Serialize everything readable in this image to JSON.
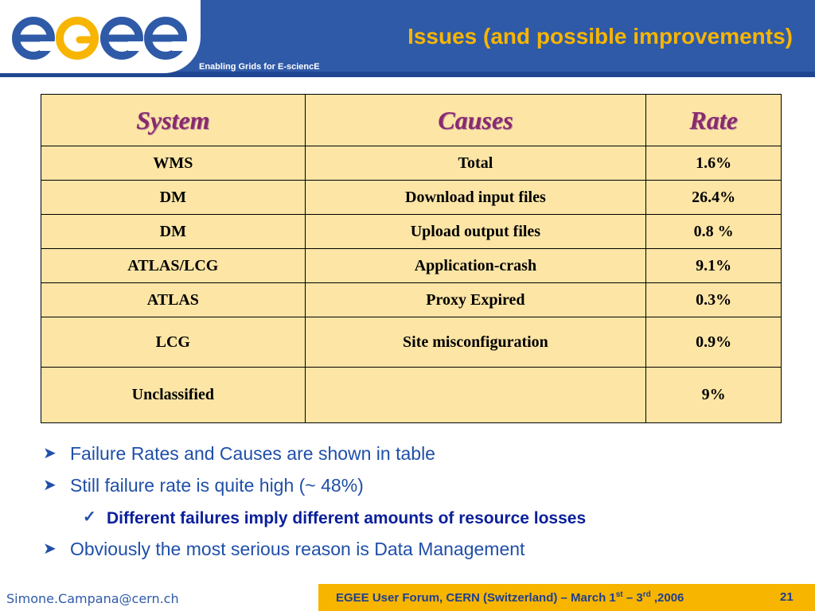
{
  "header": {
    "logo_alt": "egee",
    "tagline": "Enabling Grids for E-sciencE",
    "title": "Issues (and possible improvements)"
  },
  "table": {
    "headers": [
      "System",
      "Causes",
      "Rate"
    ],
    "rows": [
      {
        "system": "WMS",
        "cause": "Total",
        "rate": "1.6%"
      },
      {
        "system": "DM",
        "cause": "Download input files",
        "rate": "26.4%"
      },
      {
        "system": "DM",
        "cause": "Upload output files",
        "rate": "0.8 %"
      },
      {
        "system": "ATLAS/LCG",
        "cause": "Application-crash",
        "rate": "9.1%"
      },
      {
        "system": "ATLAS",
        "cause": "Proxy Expired",
        "rate": "0.3%"
      },
      {
        "system": "LCG",
        "cause": "Site misconfiguration",
        "rate": "0.9%"
      },
      {
        "system": "Unclassified",
        "cause": "",
        "rate": "9%"
      }
    ]
  },
  "bullets": [
    {
      "level": 1,
      "text": "Failure Rates and Causes are shown in table"
    },
    {
      "level": 1,
      "text": "Still failure rate is quite high (~ 48%)"
    },
    {
      "level": 2,
      "text": "Different failures imply different amounts of resource losses"
    },
    {
      "level": 1,
      "text": "Obviously the most serious reason is Data Management"
    }
  ],
  "footer": {
    "email": "Simone.Campana@cern.ch",
    "event_prefix": "EGEE User Forum, CERN (Switzerland) –  March 1",
    "event_sup1": "st",
    "event_mid": " – 3",
    "event_sup2": "rd",
    "event_suffix": " ,2006",
    "page": "21"
  },
  "colors": {
    "header_blue": "#2f5aa8",
    "accent_gold": "#f7b500",
    "table_fill": "#fce5a5",
    "header_text": "#8a2a6e"
  }
}
